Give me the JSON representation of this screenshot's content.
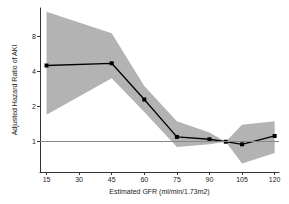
{
  "chart_data": {
    "type": "line",
    "xlabel": "Estimated GFR (ml/min/1.73m2)",
    "ylabel": "Adjusted Hazard Ratio of AKI",
    "x": [
      15,
      45,
      60,
      75,
      90,
      97.5,
      105,
      120
    ],
    "values": [
      4.5,
      4.7,
      2.3,
      1.1,
      1.05,
      1.0,
      0.95,
      1.12
    ],
    "lower": [
      1.7,
      3.5,
      1.8,
      0.9,
      0.95,
      1.0,
      0.65,
      0.8
    ],
    "upper": [
      13,
      8.5,
      3.0,
      1.5,
      1.2,
      1.0,
      1.4,
      1.5
    ],
    "reference_line": 1,
    "color": "#000000",
    "marker": "square",
    "log": "y",
    "grid": false,
    "xlim": [
      12,
      122
    ],
    "xticks": [
      15,
      30,
      45,
      60,
      75,
      90,
      105,
      120
    ],
    "ylim": [
      0.55,
      14
    ],
    "yticks": [
      1,
      2,
      4,
      8
    ]
  }
}
